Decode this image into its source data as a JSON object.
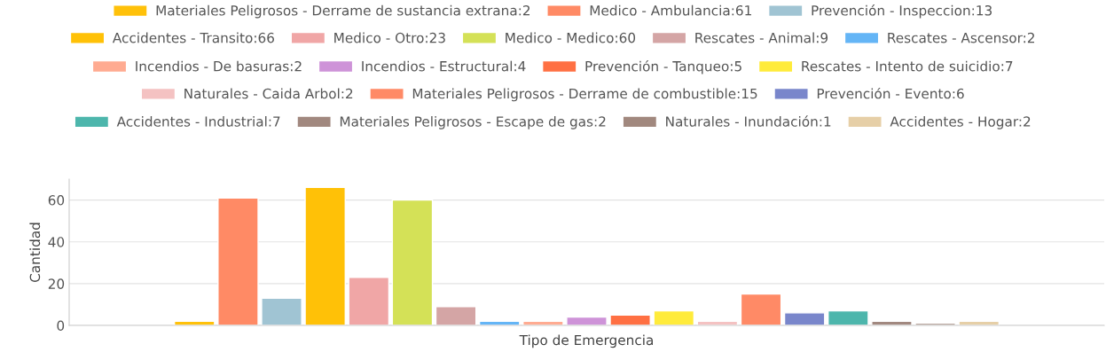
{
  "chart_data": {
    "type": "bar",
    "categories": [
      null
    ],
    "xlabel": "Tipo de Emergencia",
    "ylabel": "Cantidad",
    "ylim": [
      0,
      70
    ],
    "yticks": [
      0,
      20,
      40,
      60
    ],
    "grid": "y",
    "legend": "top",
    "series": [
      {
        "name": "Materiales Peligrosos - Derrame de sustancia extrana:2",
        "color": "#ffc10a",
        "values": [
          2
        ]
      },
      {
        "name": "Medico - Ambulancia:61",
        "color": "#ff8a65",
        "values": [
          61
        ]
      },
      {
        "name": "Prevención - Inspeccion:13",
        "color": "#a0c4d3",
        "values": [
          13
        ]
      },
      {
        "name": "Accidentes - Transito:66",
        "color": "#ffc107",
        "values": [
          66
        ]
      },
      {
        "name": "Medico - Otro:23",
        "color": "#f0a6a6",
        "values": [
          23
        ]
      },
      {
        "name": "Medico - Medico:60",
        "color": "#d4e157",
        "values": [
          60
        ]
      },
      {
        "name": "Rescates - Animal:9",
        "color": "#d4a5a5",
        "values": [
          9
        ]
      },
      {
        "name": "Rescates - Ascensor:2",
        "color": "#64b5f6",
        "values": [
          2
        ]
      },
      {
        "name": "Incendios - De basuras:2",
        "color": "#ffab91",
        "values": [
          2
        ]
      },
      {
        "name": "Incendios - Estructural:4",
        "color": "#ce93d8",
        "values": [
          4
        ]
      },
      {
        "name": "Prevención - Tanqueo:5",
        "color": "#ff7043",
        "values": [
          5
        ]
      },
      {
        "name": "Rescates - Intento de suicidio:7",
        "color": "#ffeb3b",
        "values": [
          7
        ]
      },
      {
        "name": "Naturales - Caida Arbol:2",
        "color": "#f4c2c2",
        "values": [
          2
        ]
      },
      {
        "name": "Materiales Peligrosos - Derrame de combustible:15",
        "color": "#ff8a66",
        "values": [
          15
        ]
      },
      {
        "name": "Prevención - Evento:6",
        "color": "#7986cb",
        "values": [
          6
        ]
      },
      {
        "name": "Accidentes - Industrial:7",
        "color": "#4db6ac",
        "values": [
          7
        ]
      },
      {
        "name": "Materiales Peligrosos - Escape de gas:2",
        "color": "#a1887f",
        "values": [
          2
        ]
      },
      {
        "name": "Naturales - Inundación:1",
        "color": "#a1887e",
        "values": [
          1
        ]
      },
      {
        "name": "Accidentes - Hogar:2",
        "color": "#e6cfa7",
        "values": [
          2
        ]
      }
    ]
  }
}
